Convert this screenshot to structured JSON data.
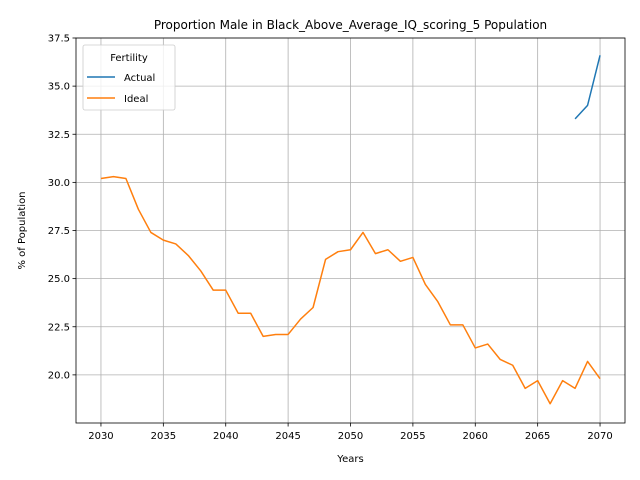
{
  "chart_data": {
    "type": "line",
    "title": "Proportion Male in Black_Above_Average_IQ_scoring_5 Population",
    "xlabel": "Years",
    "ylabel": "% of Population",
    "xlim": [
      2028.0,
      2072.0
    ],
    "ylim": [
      17.5,
      37.5
    ],
    "xticks": [
      2030,
      2035,
      2040,
      2045,
      2050,
      2055,
      2060,
      2065,
      2070
    ],
    "yticks": [
      20.0,
      22.5,
      25.0,
      27.5,
      30.0,
      32.5,
      35.0,
      37.5
    ],
    "grid": true,
    "legend": {
      "title": "Fertility",
      "placement": "top-left"
    },
    "series": [
      {
        "name": "Actual",
        "color": "#1f77b4",
        "x": [
          2068,
          2069,
          2070
        ],
        "y": [
          33.3,
          34.0,
          36.6
        ]
      },
      {
        "name": "Ideal",
        "color": "#ff7f0e",
        "x": [
          2030,
          2031,
          2032,
          2033,
          2034,
          2035,
          2036,
          2037,
          2038,
          2039,
          2040,
          2041,
          2042,
          2043,
          2044,
          2045,
          2046,
          2047,
          2048,
          2049,
          2050,
          2051,
          2052,
          2053,
          2054,
          2055,
          2056,
          2057,
          2058,
          2059,
          2060,
          2061,
          2062,
          2063,
          2064,
          2065,
          2066,
          2067,
          2068,
          2069,
          2070
        ],
        "y": [
          30.2,
          30.3,
          30.2,
          28.6,
          27.4,
          27.0,
          26.8,
          26.2,
          25.4,
          24.4,
          24.4,
          23.2,
          23.2,
          22.0,
          22.1,
          22.1,
          22.9,
          23.5,
          26.0,
          26.4,
          26.5,
          27.4,
          26.3,
          26.5,
          25.9,
          26.1,
          24.7,
          23.8,
          22.6,
          22.6,
          21.4,
          21.6,
          20.8,
          20.5,
          19.3,
          19.7,
          18.5,
          19.7,
          19.3,
          20.7,
          19.8
        ]
      }
    ]
  }
}
